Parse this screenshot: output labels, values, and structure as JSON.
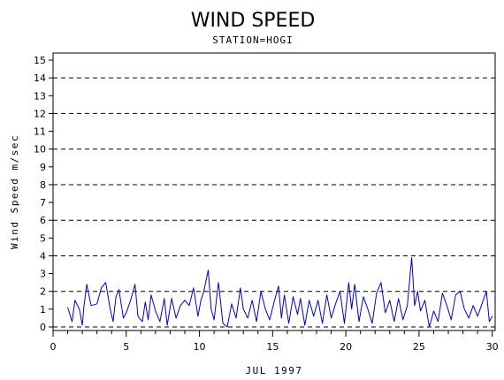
{
  "chart_data": {
    "type": "line",
    "title": "WIND SPEED",
    "subtitle": "STATION=HOGI",
    "xlabel": "JUL 1997",
    "ylabel": "Wind Speed m/sec",
    "xlim": [
      0,
      30.2
    ],
    "ylim": [
      -0.2,
      15.4
    ],
    "yticks": [
      0,
      1,
      2,
      3,
      4,
      5,
      6,
      7,
      8,
      9,
      10,
      11,
      12,
      13,
      14,
      15
    ],
    "xticks": [
      0,
      5,
      10,
      15,
      20,
      25,
      30
    ],
    "gridlines_y": [
      0,
      2,
      4,
      6,
      8,
      10,
      12,
      14
    ],
    "grid_style": "dashed",
    "line_color": "#0000cc",
    "series": [
      {
        "x": [
          1.0,
          1.3,
          1.5,
          1.8,
          2.0,
          2.1,
          2.3,
          2.6,
          3.0,
          3.3,
          3.6,
          3.9,
          4.1,
          4.3,
          4.5,
          4.8,
          5.0,
          5.3,
          5.6,
          5.8,
          6.1,
          6.3,
          6.5,
          6.7,
          7.0,
          7.3,
          7.6,
          7.8,
          8.1,
          8.4,
          8.7,
          9.0,
          9.3,
          9.6,
          9.9,
          10.1,
          10.3,
          10.6,
          10.8,
          11.0,
          11.3,
          11.6,
          11.9,
          12.2,
          12.5,
          12.8,
          13.0,
          13.3,
          13.6,
          13.9,
          14.2,
          14.5,
          14.8,
          15.1,
          15.4,
          15.6,
          15.8,
          16.1,
          16.4,
          16.7,
          16.9,
          17.2,
          17.5,
          17.8,
          18.1,
          18.4,
          18.7,
          19.0,
          19.3,
          19.6,
          19.9,
          20.2,
          20.4,
          20.6,
          20.9,
          21.2,
          21.5,
          21.8,
          22.1,
          22.4,
          22.7,
          23.0,
          23.3,
          23.6,
          23.9,
          24.2,
          24.5,
          24.7,
          24.9,
          25.1,
          25.4,
          25.7,
          26.0,
          26.3,
          26.6,
          26.9,
          27.2,
          27.5,
          27.8,
          28.1,
          28.4,
          28.7,
          29.0,
          29.3,
          29.6,
          29.8,
          30.0
        ],
        "y": [
          1.1,
          0.3,
          1.5,
          1.0,
          0.1,
          1.1,
          2.4,
          1.2,
          1.3,
          2.2,
          2.5,
          1.0,
          0.3,
          1.7,
          2.1,
          0.5,
          0.8,
          1.5,
          2.4,
          0.6,
          0.3,
          1.4,
          0.4,
          1.8,
          0.9,
          0.3,
          1.6,
          0.1,
          1.6,
          0.5,
          1.2,
          1.5,
          1.2,
          2.2,
          0.6,
          1.5,
          2.0,
          3.2,
          1.0,
          0.4,
          2.5,
          0.2,
          0.0,
          1.3,
          0.5,
          2.2,
          1.0,
          0.5,
          1.5,
          0.3,
          2.0,
          1.0,
          0.4,
          1.4,
          2.3,
          0.5,
          1.8,
          0.2,
          1.7,
          0.7,
          1.6,
          0.1,
          1.5,
          0.6,
          1.5,
          0.2,
          1.8,
          0.5,
          1.3,
          2.0,
          0.2,
          2.5,
          1.0,
          2.4,
          0.3,
          1.7,
          1.0,
          0.2,
          1.9,
          2.5,
          0.8,
          1.5,
          0.3,
          1.6,
          0.4,
          1.2,
          3.9,
          1.2,
          2.0,
          0.9,
          1.5,
          0.0,
          0.9,
          0.3,
          1.9,
          1.2,
          0.4,
          1.8,
          2.0,
          1.0,
          0.5,
          1.2,
          0.6,
          1.3,
          2.0,
          0.3,
          0.6
        ]
      }
    ]
  }
}
